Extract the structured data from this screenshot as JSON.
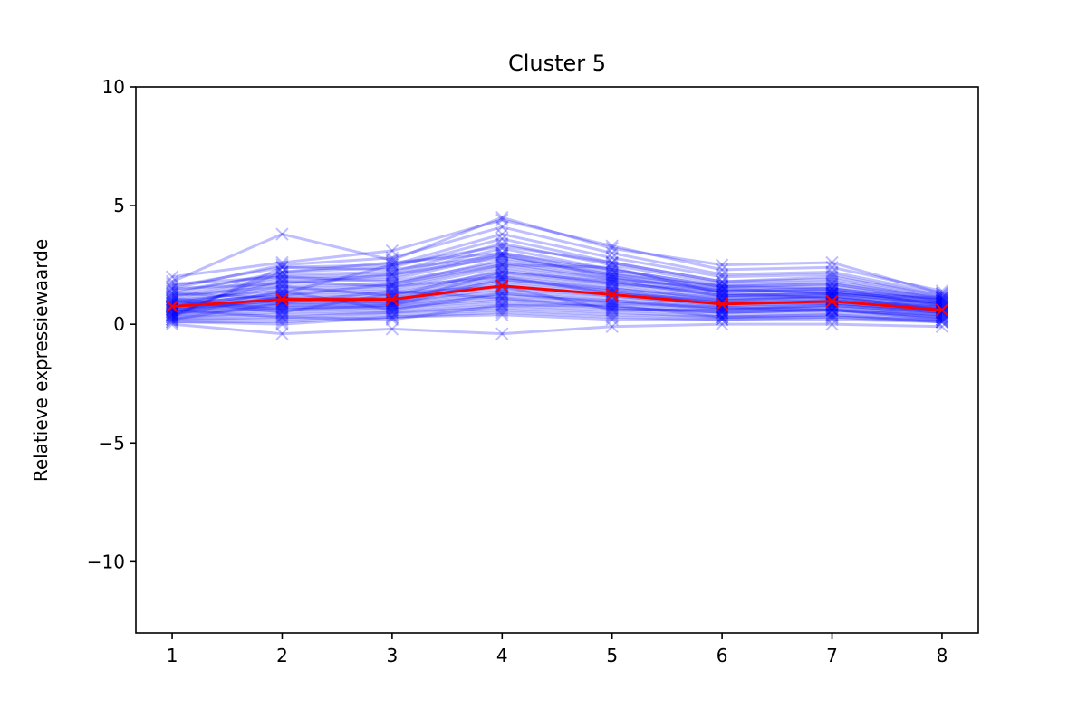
{
  "chart_data": {
    "type": "line",
    "title": "Cluster 5",
    "xlabel": "",
    "ylabel": "Relatieve expressiewaarde",
    "x": [
      1,
      2,
      3,
      4,
      5,
      6,
      7,
      8
    ],
    "xlim": [
      0.67,
      8.33
    ],
    "ylim": [
      -13,
      10
    ],
    "yticks": [
      10,
      5,
      0,
      -5,
      -10
    ],
    "ytick_labels": [
      "10",
      "5",
      "0",
      "−5",
      "−10"
    ],
    "xtick_labels": [
      "1",
      "2",
      "3",
      "4",
      "5",
      "6",
      "7",
      "8"
    ],
    "grid": false,
    "marker": "x",
    "colors": {
      "members": "#0000ff",
      "centroid": "#ff0000",
      "frame": "#000000",
      "background": "#ffffff"
    },
    "member_opacity": 0.25,
    "centroid": {
      "values": [
        0.75,
        1.05,
        1.05,
        1.62,
        1.25,
        0.85,
        0.97,
        0.6
      ]
    },
    "series": [
      {
        "values": [
          1.8,
          3.8,
          2.7,
          4.5,
          3.2,
          2.5,
          2.6,
          1.3
        ]
      },
      {
        "values": [
          2.0,
          2.6,
          3.1,
          4.4,
          3.3,
          2.3,
          2.4,
          1.4
        ]
      },
      {
        "values": [
          1.5,
          2.5,
          2.8,
          4.1,
          3.0,
          2.1,
          2.2,
          1.3
        ]
      },
      {
        "values": [
          1.6,
          2.4,
          2.5,
          3.8,
          2.8,
          2.0,
          2.1,
          1.2
        ]
      },
      {
        "values": [
          1.3,
          2.2,
          2.4,
          3.6,
          2.6,
          1.8,
          2.0,
          1.2
        ]
      },
      {
        "values": [
          1.4,
          2.1,
          2.2,
          3.4,
          2.5,
          1.7,
          1.8,
          1.1
        ]
      },
      {
        "values": [
          1.2,
          2.0,
          2.1,
          3.2,
          2.3,
          1.6,
          1.7,
          1.1
        ]
      },
      {
        "values": [
          1.1,
          1.9,
          2.0,
          3.0,
          2.2,
          1.5,
          1.6,
          1.0
        ]
      },
      {
        "values": [
          1.0,
          1.8,
          1.9,
          2.9,
          2.1,
          1.4,
          1.5,
          1.0
        ]
      },
      {
        "values": [
          1.2,
          1.6,
          1.7,
          2.7,
          2.0,
          1.3,
          1.4,
          0.9
        ]
      },
      {
        "values": [
          0.9,
          1.5,
          1.6,
          2.5,
          1.9,
          1.2,
          1.3,
          0.9
        ]
      },
      {
        "values": [
          1.0,
          1.4,
          1.5,
          2.4,
          1.8,
          1.2,
          1.3,
          0.8
        ]
      },
      {
        "values": [
          0.8,
          1.3,
          1.4,
          2.2,
          1.7,
          1.1,
          1.2,
          0.8
        ]
      },
      {
        "values": [
          0.9,
          1.2,
          1.3,
          2.1,
          1.6,
          1.0,
          1.1,
          0.7
        ]
      },
      {
        "values": [
          0.8,
          1.1,
          1.2,
          2.0,
          1.5,
          1.0,
          1.1,
          0.7
        ]
      },
      {
        "values": [
          0.7,
          1.1,
          1.1,
          1.9,
          1.4,
          0.9,
          1.0,
          0.7
        ]
      },
      {
        "values": [
          0.7,
          1.0,
          1.1,
          1.8,
          1.4,
          0.9,
          1.0,
          0.6
        ]
      },
      {
        "values": [
          0.6,
          1.0,
          1.0,
          1.7,
          1.3,
          0.9,
          0.9,
          0.6
        ]
      },
      {
        "values": [
          0.6,
          0.9,
          1.0,
          1.6,
          1.2,
          0.8,
          0.9,
          0.6
        ]
      },
      {
        "values": [
          0.7,
          0.9,
          0.9,
          1.5,
          1.2,
          0.8,
          0.9,
          0.5
        ]
      },
      {
        "values": [
          0.5,
          0.8,
          0.9,
          1.4,
          1.1,
          0.7,
          0.8,
          0.5
        ]
      },
      {
        "values": [
          0.6,
          0.8,
          0.8,
          1.3,
          1.0,
          0.7,
          0.8,
          0.5
        ]
      },
      {
        "values": [
          0.5,
          0.7,
          0.8,
          1.2,
          1.0,
          0.6,
          0.7,
          0.4
        ]
      },
      {
        "values": [
          0.4,
          0.7,
          0.7,
          1.1,
          0.9,
          0.6,
          0.7,
          0.4
        ]
      },
      {
        "values": [
          0.4,
          0.6,
          0.7,
          1.0,
          0.8,
          0.5,
          0.6,
          0.4
        ]
      },
      {
        "values": [
          0.3,
          0.5,
          0.6,
          0.9,
          0.7,
          0.5,
          0.6,
          0.3
        ]
      },
      {
        "values": [
          0.3,
          0.4,
          0.5,
          0.8,
          0.6,
          0.4,
          0.5,
          0.3
        ]
      },
      {
        "values": [
          0.2,
          0.3,
          0.5,
          0.7,
          0.5,
          0.3,
          0.4,
          0.2
        ]
      },
      {
        "values": [
          0.2,
          0.2,
          0.4,
          0.6,
          0.4,
          0.3,
          0.3,
          0.2
        ]
      },
      {
        "values": [
          0.1,
          0.1,
          0.3,
          0.5,
          0.3,
          0.2,
          0.3,
          0.1
        ]
      },
      {
        "values": [
          0.1,
          0.0,
          0.3,
          0.4,
          0.2,
          0.2,
          0.2,
          0.1
        ]
      },
      {
        "values": [
          0.0,
          -0.4,
          -0.2,
          -0.4,
          -0.1,
          0.0,
          0.0,
          -0.1
        ]
      },
      {
        "values": [
          0.3,
          2.4,
          2.3,
          2.9,
          2.0,
          1.4,
          1.5,
          0.8
        ]
      },
      {
        "values": [
          0.4,
          2.2,
          2.6,
          3.0,
          2.3,
          1.6,
          1.7,
          1.0
        ]
      },
      {
        "values": [
          1.7,
          2.0,
          1.8,
          2.6,
          1.9,
          1.5,
          1.3,
          0.9
        ]
      },
      {
        "values": [
          1.5,
          1.7,
          2.1,
          2.8,
          2.1,
          1.6,
          1.5,
          1.0
        ]
      },
      {
        "values": [
          0.8,
          1.3,
          2.5,
          3.3,
          2.6,
          1.8,
          1.9,
          1.1
        ]
      },
      {
        "values": [
          0.9,
          1.6,
          1.2,
          2.3,
          1.7,
          1.4,
          1.4,
          0.9
        ]
      },
      {
        "values": [
          1.1,
          0.6,
          0.8,
          1.9,
          1.5,
          1.1,
          1.2,
          0.8
        ]
      },
      {
        "values": [
          0.5,
          1.4,
          0.6,
          1.3,
          0.9,
          0.7,
          0.6,
          0.3
        ]
      },
      {
        "values": [
          0.2,
          0.9,
          1.4,
          1.1,
          0.7,
          0.5,
          0.6,
          0.2
        ]
      },
      {
        "values": [
          0.6,
          0.3,
          0.2,
          0.8,
          0.8,
          0.3,
          0.4,
          0.1
        ]
      },
      {
        "values": [
          1.3,
          1.1,
          0.9,
          2.2,
          1.8,
          1.2,
          1.3,
          1.1
        ]
      },
      {
        "values": [
          0.7,
          1.8,
          1.6,
          2.0,
          1.3,
          1.0,
          1.2,
          0.6
        ]
      },
      {
        "values": [
          1.0,
          0.5,
          1.3,
          1.6,
          0.6,
          0.6,
          0.8,
          0.5
        ]
      },
      {
        "values": [
          0.4,
          1.2,
          1.7,
          2.5,
          2.4,
          1.3,
          1.1,
          0.7
        ]
      }
    ]
  }
}
